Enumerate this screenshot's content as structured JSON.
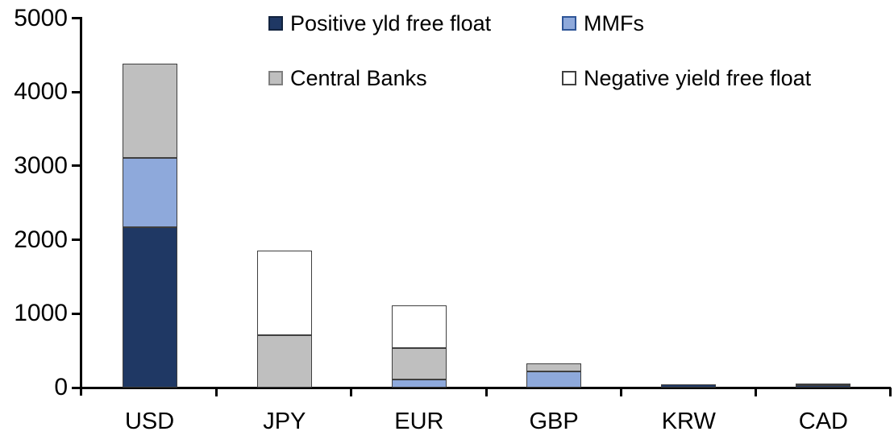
{
  "chart_data": {
    "type": "bar",
    "stacked": true,
    "title": "",
    "xlabel": "",
    "ylabel": "",
    "grid": false,
    "legend_position": "top-inside",
    "categories": [
      "USD",
      "JPY",
      "EUR",
      "GBP",
      "KRW",
      "CAD"
    ],
    "ylim": [
      0,
      5000
    ],
    "yticks": [
      0,
      1000,
      2000,
      3000,
      4000,
      5000
    ],
    "series": [
      {
        "name": "Positive yld free float",
        "color": "#1F3864",
        "border_color": "#12233E",
        "values": [
          2170,
          0,
          0,
          0,
          45,
          30
        ]
      },
      {
        "name": "MMFs",
        "color": "#8EA9DB",
        "border_color": "#2E5597",
        "values": [
          940,
          0,
          110,
          220,
          0,
          0
        ]
      },
      {
        "name": "Central Banks",
        "color": "#BFBFBF",
        "border_color": "#7F7F7F",
        "values": [
          1270,
          710,
          420,
          110,
          0,
          30
        ]
      },
      {
        "name": "Negative yield free float",
        "color": "#FFFFFF",
        "border_color": "#404040",
        "values": [
          0,
          1140,
          580,
          0,
          0,
          0
        ]
      }
    ],
    "totals": {
      "USD": 4380,
      "JPY": 1850,
      "EUR": 1110,
      "GBP": 330,
      "KRW": 45,
      "CAD": 60
    }
  }
}
